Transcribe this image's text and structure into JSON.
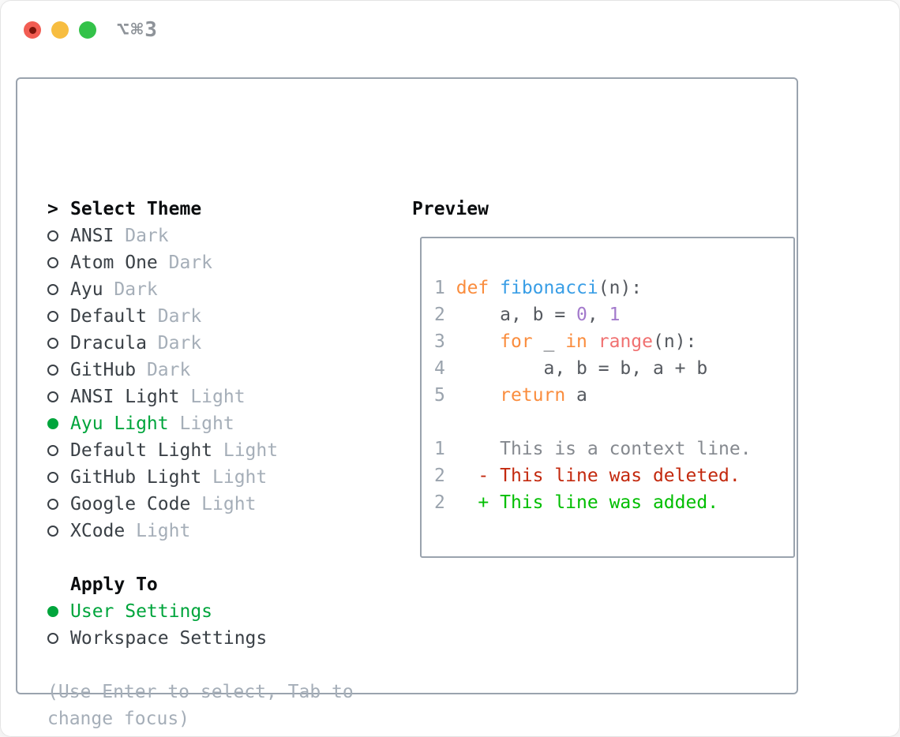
{
  "window": {
    "shortcut_label": "⌥⌘3"
  },
  "colors": {
    "tl_red": "#f25d53",
    "tl_red_dot": "#7c150b",
    "tl_yellow": "#f7bd40",
    "tl_green": "#33c249",
    "border": "#9aa3ae",
    "header": "#0b0d0f",
    "item": "#3a4046",
    "muted": "#a5aeb8",
    "selected": "#00a53c",
    "ln": "#9aa3ad",
    "kw": "#fa8d3e",
    "fn": "#399ee6",
    "cn": "#a37acc",
    "bi": "#f07171",
    "fg": "#55595f",
    "ctx": "#85898f",
    "del": "#c3290e",
    "add": "#00be00"
  },
  "theme_picker": {
    "header_marker": ">",
    "header": "Select Theme",
    "items": [
      {
        "label": "ANSI",
        "variant": "Dark",
        "selected": false
      },
      {
        "label": "Atom One",
        "variant": "Dark",
        "selected": false
      },
      {
        "label": "Ayu",
        "variant": "Dark",
        "selected": false
      },
      {
        "label": "Default",
        "variant": "Dark",
        "selected": false
      },
      {
        "label": "Dracula",
        "variant": "Dark",
        "selected": false
      },
      {
        "label": "GitHub",
        "variant": "Dark",
        "selected": false
      },
      {
        "label": "ANSI Light",
        "variant": "Light",
        "selected": false
      },
      {
        "label": "Ayu Light",
        "variant": "Light",
        "selected": true
      },
      {
        "label": "Default Light",
        "variant": "Light",
        "selected": false
      },
      {
        "label": "GitHub Light",
        "variant": "Light",
        "selected": false
      },
      {
        "label": "Google Code",
        "variant": "Light",
        "selected": false
      },
      {
        "label": "XCode",
        "variant": "Light",
        "selected": false
      }
    ],
    "apply_to": {
      "header": "Apply To",
      "options": [
        {
          "label": "User Settings",
          "selected": true
        },
        {
          "label": "Workspace Settings",
          "selected": false
        }
      ]
    },
    "hint": "(Use Enter to select, Tab to change focus)"
  },
  "preview": {
    "title": "Preview",
    "lines": [
      [
        {
          "t": "1",
          "c": "ln"
        },
        {
          "t": " ",
          "c": "fg"
        },
        {
          "t": "def",
          "c": "kw"
        },
        {
          "t": " ",
          "c": "fg"
        },
        {
          "t": "fibonacci",
          "c": "fn"
        },
        {
          "t": "(n):",
          "c": "fg"
        }
      ],
      [
        {
          "t": "2",
          "c": "ln"
        },
        {
          "t": "     a, b = ",
          "c": "fg"
        },
        {
          "t": "0",
          "c": "cn"
        },
        {
          "t": ", ",
          "c": "fg"
        },
        {
          "t": "1",
          "c": "cn"
        }
      ],
      [
        {
          "t": "3",
          "c": "ln"
        },
        {
          "t": "     ",
          "c": "fg"
        },
        {
          "t": "for",
          "c": "kw"
        },
        {
          "t": " _ ",
          "c": "fg"
        },
        {
          "t": "in",
          "c": "kw"
        },
        {
          "t": " ",
          "c": "fg"
        },
        {
          "t": "range",
          "c": "bi"
        },
        {
          "t": "(n):",
          "c": "fg"
        }
      ],
      [
        {
          "t": "4",
          "c": "ln"
        },
        {
          "t": "         a, b = b, a + b",
          "c": "fg"
        }
      ],
      [
        {
          "t": "5",
          "c": "ln"
        },
        {
          "t": "     ",
          "c": "fg"
        },
        {
          "t": "return",
          "c": "kw"
        },
        {
          "t": " a",
          "c": "fg"
        }
      ],
      [],
      [
        {
          "t": "1",
          "c": "ln"
        },
        {
          "t": "     This is a context line.",
          "c": "ctx"
        }
      ],
      [
        {
          "t": "2",
          "c": "ln"
        },
        {
          "t": "   - This line was deleted.",
          "c": "del"
        }
      ],
      [
        {
          "t": "2",
          "c": "ln"
        },
        {
          "t": "   + This line was added.",
          "c": "add"
        }
      ]
    ]
  }
}
